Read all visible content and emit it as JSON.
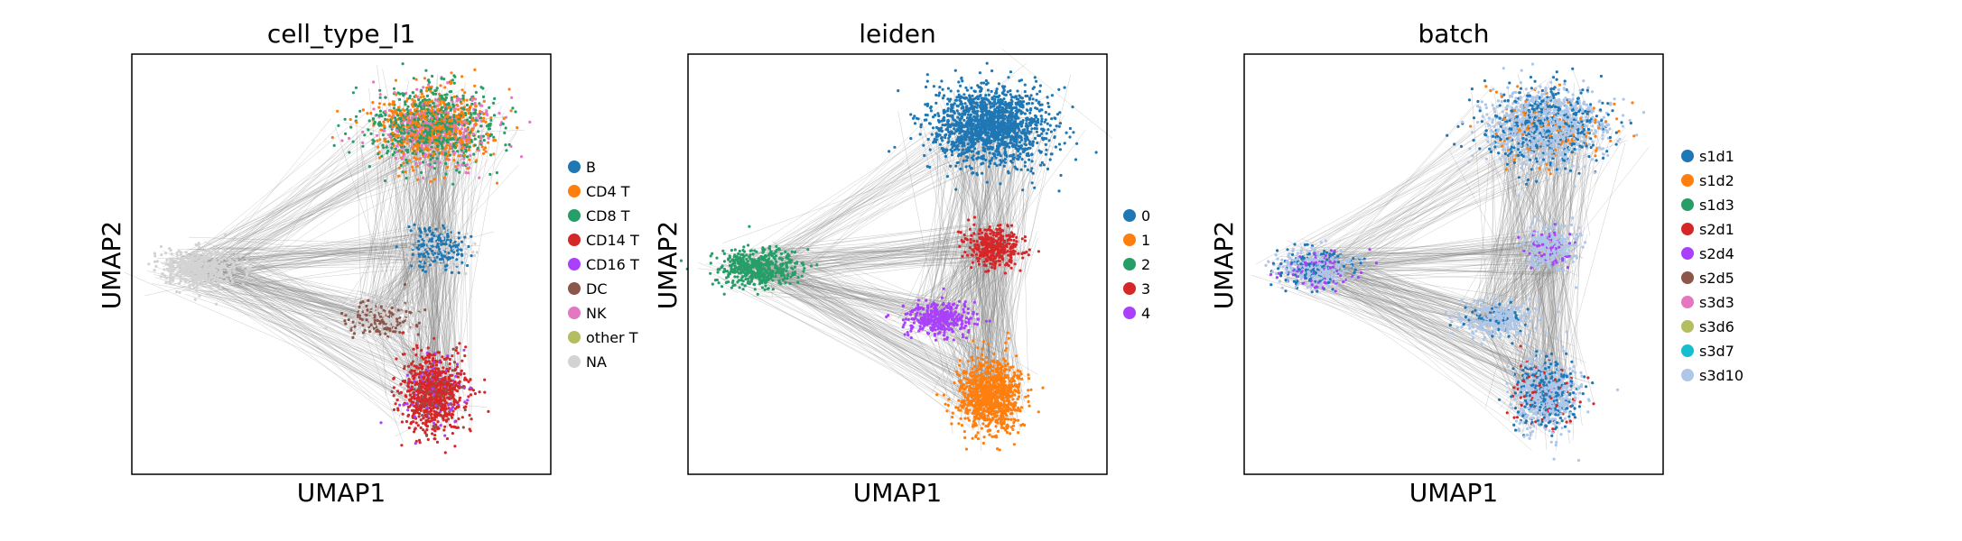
{
  "chart_data": [
    {
      "type": "scatter",
      "title": "cell_type_l1",
      "xlabel": "UMAP1",
      "ylabel": "UMAP2",
      "grid": false,
      "legend_placement": "right",
      "legend": [
        {
          "label": "B",
          "color": "#1f77b4"
        },
        {
          "label": "CD4 T",
          "color": "#ff7f0e"
        },
        {
          "label": "CD8 T",
          "color": "#279e68"
        },
        {
          "label": "CD14 T",
          "color": "#d62728"
        },
        {
          "label": "CD16 T",
          "color": "#aa40fc"
        },
        {
          "label": "DC",
          "color": "#8c564b"
        },
        {
          "label": "NK",
          "color": "#e377c2"
        },
        {
          "label": "other T",
          "color": "#b5bd61"
        },
        {
          "label": "NA",
          "color": "#d3d3d3"
        }
      ],
      "edge_color": "#808080"
    },
    {
      "type": "scatter",
      "title": "leiden",
      "xlabel": "UMAP1",
      "ylabel": "UMAP2",
      "grid": false,
      "legend_placement": "right",
      "legend": [
        {
          "label": "0",
          "color": "#1f77b4"
        },
        {
          "label": "1",
          "color": "#ff7f0e"
        },
        {
          "label": "2",
          "color": "#279e68"
        },
        {
          "label": "3",
          "color": "#d62728"
        },
        {
          "label": "4",
          "color": "#aa40fc"
        }
      ],
      "edge_color": "#808080"
    },
    {
      "type": "scatter",
      "title": "batch",
      "xlabel": "UMAP1",
      "ylabel": "UMAP2",
      "grid": false,
      "legend_placement": "right",
      "legend": [
        {
          "label": "s1d1",
          "color": "#1f77b4"
        },
        {
          "label": "s1d2",
          "color": "#ff7f0e"
        },
        {
          "label": "s1d3",
          "color": "#279e68"
        },
        {
          "label": "s2d1",
          "color": "#d62728"
        },
        {
          "label": "s2d4",
          "color": "#aa40fc"
        },
        {
          "label": "s2d5",
          "color": "#8c564b"
        },
        {
          "label": "s3d3",
          "color": "#e377c2"
        },
        {
          "label": "s3d6",
          "color": "#b5bd61"
        },
        {
          "label": "s3d7",
          "color": "#17becf"
        },
        {
          "label": "s3d10",
          "color": "#aec7e8"
        }
      ],
      "edge_color": "#808080"
    }
  ]
}
